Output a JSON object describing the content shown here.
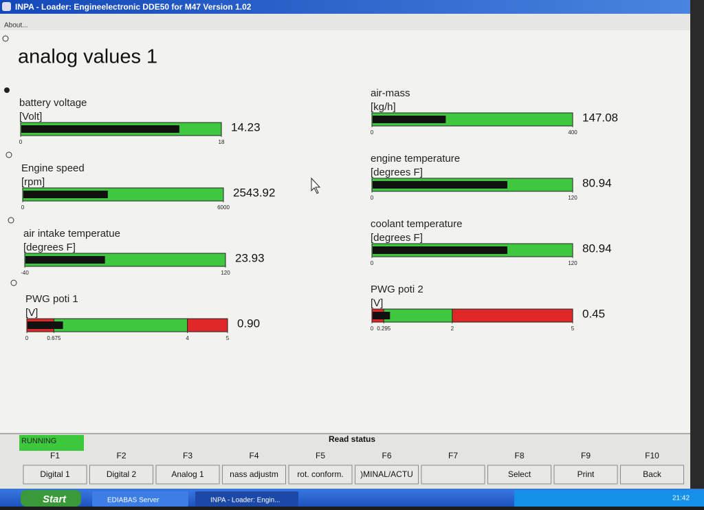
{
  "window": {
    "title": "INPA - Loader:  Engineelectronic DDE50 for M47 Version 1.02",
    "menu": "About..."
  },
  "screen": {
    "title": "analog values 1",
    "gauges": [
      {
        "label": "battery voltage",
        "unit": "[Volt]",
        "value": 14.23,
        "xlim": [
          0,
          18
        ],
        "xticks": [
          0,
          18
        ]
      },
      {
        "label": "Engine speed",
        "unit": "[rpm]",
        "value": 2543.92,
        "xlim": [
          0,
          6000
        ],
        "xticks": [
          0,
          6000
        ]
      },
      {
        "label": "air intake temperatue",
        "unit": "[degrees F]",
        "value": 23.93,
        "xlim": [
          -40,
          120
        ],
        "xticks": [
          -40,
          120
        ]
      },
      {
        "label": "PWG poti 1",
        "unit": "[V]",
        "value": 0.9,
        "value_label": "0.90",
        "xlim": [
          0,
          5
        ],
        "xticks": [
          0,
          0.675,
          4,
          5
        ],
        "red_zones": [
          [
            0,
            0.675
          ],
          [
            4,
            5
          ]
        ]
      },
      {
        "label": "air-mass",
        "unit": "[kg/h]",
        "value": 147.08,
        "xlim": [
          0,
          400
        ],
        "xticks": [
          0,
          400
        ]
      },
      {
        "label": "engine temperature",
        "unit": "[degrees F]",
        "value": 80.94,
        "xlim": [
          0,
          120
        ],
        "xticks": [
          0,
          120
        ]
      },
      {
        "label": "coolant temperature",
        "unit": "[degrees F]",
        "value": 80.94,
        "xlim": [
          0,
          120
        ],
        "xticks": [
          0,
          120
        ]
      },
      {
        "label": "PWG poti 2",
        "unit": "[V]",
        "value": 0.45,
        "xlim": [
          0,
          5
        ],
        "xticks": [
          0,
          0.295,
          2,
          5
        ],
        "red_zones": [
          [
            0,
            0.295
          ],
          [
            2,
            5
          ]
        ]
      }
    ]
  },
  "status": {
    "state": "RUNNING",
    "message": "Read status"
  },
  "keys": [
    {
      "key": "F1",
      "label": "Digital 1"
    },
    {
      "key": "F2",
      "label": "Digital 2"
    },
    {
      "key": "F3",
      "label": "Analog 1"
    },
    {
      "key": "F4",
      "label": "nass adjustm"
    },
    {
      "key": "F5",
      "label": "rot. conform."
    },
    {
      "key": "F6",
      "label": ")MINAL/ACTU"
    },
    {
      "key": "F7",
      "label": null
    },
    {
      "key": "F8",
      "label": "Select"
    },
    {
      "key": "F9",
      "label": "Print"
    },
    {
      "key": "F10",
      "label": "Back"
    }
  ],
  "taskbar": {
    "start": "Start",
    "items": [
      "EDIABAS Server",
      "INPA - Loader:  Engin..."
    ],
    "clock": "21:42"
  }
}
